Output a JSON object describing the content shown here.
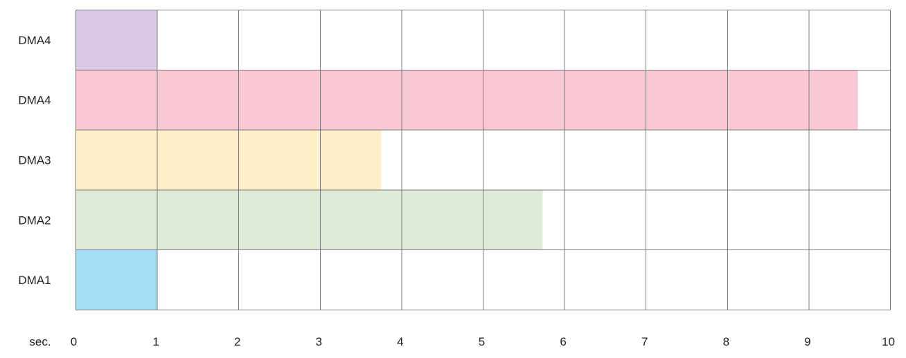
{
  "chart_data": {
    "type": "bar",
    "orientation": "horizontal",
    "title": "",
    "xlabel": "sec.",
    "ylabel": "",
    "xlim": [
      0,
      10
    ],
    "x_ticks": [
      0,
      1,
      2,
      3,
      4,
      5,
      6,
      7,
      8,
      9,
      10
    ],
    "grid": true,
    "legend": "none",
    "categories": [
      "DMA4",
      "DMA4",
      "DMA3",
      "DMA2",
      "DMA1"
    ],
    "values": [
      1,
      9.6,
      3.75,
      5.73,
      1
    ],
    "colors": [
      "#d9c9e6",
      "#f9c8d4",
      "#fdefc8",
      "#deebd6",
      "#a6ddf6"
    ]
  }
}
